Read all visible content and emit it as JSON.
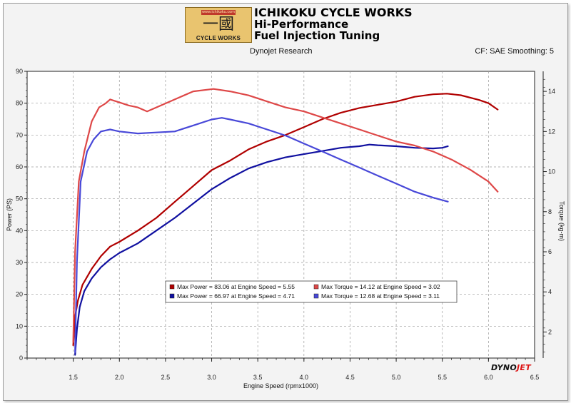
{
  "header": {
    "logo_tag": "www.ichikoku.com",
    "logo_kanji": "一國",
    "logo_text": "CYCLE WORKS",
    "line1": "ICHIKOKU CYCLE WORKS",
    "line2": "Hi-Performance",
    "line3": "Fuel Injection Tuning",
    "subtitle": "Dynojet Research",
    "cf_info": "CF: SAE Smoothing: 5"
  },
  "brand": {
    "part1": "DYNO",
    "part2": "JET"
  },
  "colors": {
    "power_run1": "#b00000",
    "power_run2": "#1010a0",
    "torque_run1": "#de4848",
    "torque_run2": "#4848d8",
    "grid": "#9a9a9a",
    "plot_bg": "#ffffff"
  },
  "chart_data": {
    "type": "line",
    "xlabel": "Engine Speed (rpmx1000)",
    "ylabel": "Power (PS)",
    "y2label": "Torque (kg-m)",
    "xlim": [
      1.0,
      6.5
    ],
    "ylim": [
      0,
      90
    ],
    "y2lim": [
      0.7,
      15.0
    ],
    "x_ticks": [
      "1.5",
      "2.0",
      "2.5",
      "3.0",
      "3.5",
      "4.0",
      "4.5",
      "5.0",
      "5.5",
      "6.0",
      "6.5"
    ],
    "y_ticks": [
      "0",
      "10",
      "20",
      "30",
      "40",
      "50",
      "60",
      "70",
      "80",
      "90"
    ],
    "y2_ticks": [
      "2",
      "4",
      "6",
      "8",
      "10",
      "12",
      "14"
    ],
    "grid": true,
    "legend_position": "lower-center",
    "series": [
      {
        "name": "Max Power = 83.06 at Engine Speed = 5.55",
        "axis": "left",
        "color": "#b00000",
        "x": [
          1.5,
          1.52,
          1.55,
          1.6,
          1.7,
          1.8,
          1.9,
          2.0,
          2.2,
          2.4,
          2.6,
          2.8,
          3.0,
          3.2,
          3.4,
          3.6,
          3.8,
          4.0,
          4.2,
          4.4,
          4.6,
          4.8,
          5.0,
          5.2,
          5.4,
          5.55,
          5.7,
          5.9,
          6.0,
          6.1
        ],
        "y": [
          4,
          13,
          18,
          23,
          28,
          32,
          35,
          36.5,
          40,
          44,
          49,
          54,
          59,
          62,
          65.5,
          68,
          70,
          72.5,
          75,
          77,
          78.5,
          79.5,
          80.5,
          82,
          82.8,
          83,
          82.5,
          81,
          80,
          78
        ]
      },
      {
        "name": "Max Power = 66.97 at Engine Speed = 4.71",
        "axis": "left",
        "color": "#1010a0",
        "x": [
          1.52,
          1.54,
          1.57,
          1.62,
          1.7,
          1.8,
          1.9,
          2.0,
          2.2,
          2.4,
          2.6,
          2.8,
          3.0,
          3.2,
          3.4,
          3.6,
          3.8,
          4.0,
          4.2,
          4.4,
          4.6,
          4.71,
          4.8,
          5.0,
          5.2,
          5.4,
          5.5,
          5.56
        ],
        "y": [
          1,
          9,
          16,
          21,
          25,
          28.5,
          31,
          33,
          36,
          40,
          44,
          48.5,
          53,
          56.5,
          59.5,
          61.5,
          63,
          64,
          65,
          66,
          66.5,
          67,
          66.8,
          66.5,
          66,
          65.8,
          66,
          66.5
        ]
      },
      {
        "name": "Max Torque = 14.12 at Engine Speed = 3.02",
        "axis": "right",
        "color": "#de4848",
        "x": [
          1.5,
          1.52,
          1.56,
          1.62,
          1.7,
          1.78,
          1.85,
          1.9,
          2.0,
          2.1,
          2.2,
          2.3,
          2.4,
          2.6,
          2.8,
          3.02,
          3.2,
          3.4,
          3.6,
          3.8,
          4.0,
          4.2,
          4.4,
          4.6,
          4.8,
          5.0,
          5.2,
          5.4,
          5.6,
          5.8,
          6.0,
          6.1
        ],
        "y": [
          1.5,
          6,
          9.5,
          11,
          12.5,
          13.2,
          13.4,
          13.6,
          13.45,
          13.3,
          13.2,
          13.0,
          13.2,
          13.6,
          14.0,
          14.12,
          14.0,
          13.8,
          13.5,
          13.2,
          13.0,
          12.7,
          12.4,
          12.1,
          11.8,
          11.5,
          11.3,
          11.0,
          10.6,
          10.1,
          9.5,
          9.0
        ]
      },
      {
        "name": "Max Torque = 12.68 at Engine Speed = 3.11",
        "axis": "right",
        "color": "#4848d8",
        "x": [
          1.52,
          1.54,
          1.58,
          1.65,
          1.72,
          1.8,
          1.9,
          1.95,
          2.0,
          2.2,
          2.4,
          2.6,
          2.8,
          3.0,
          3.11,
          3.2,
          3.4,
          3.6,
          3.8,
          4.0,
          4.2,
          4.4,
          4.6,
          4.8,
          5.0,
          5.2,
          5.4,
          5.56
        ],
        "y": [
          1.0,
          5.5,
          9.5,
          11.0,
          11.6,
          12.0,
          12.1,
          12.05,
          12.0,
          11.9,
          11.95,
          12.0,
          12.3,
          12.6,
          12.68,
          12.6,
          12.4,
          12.1,
          11.8,
          11.4,
          11.0,
          10.6,
          10.2,
          9.8,
          9.4,
          9.0,
          8.7,
          8.5
        ]
      }
    ]
  }
}
